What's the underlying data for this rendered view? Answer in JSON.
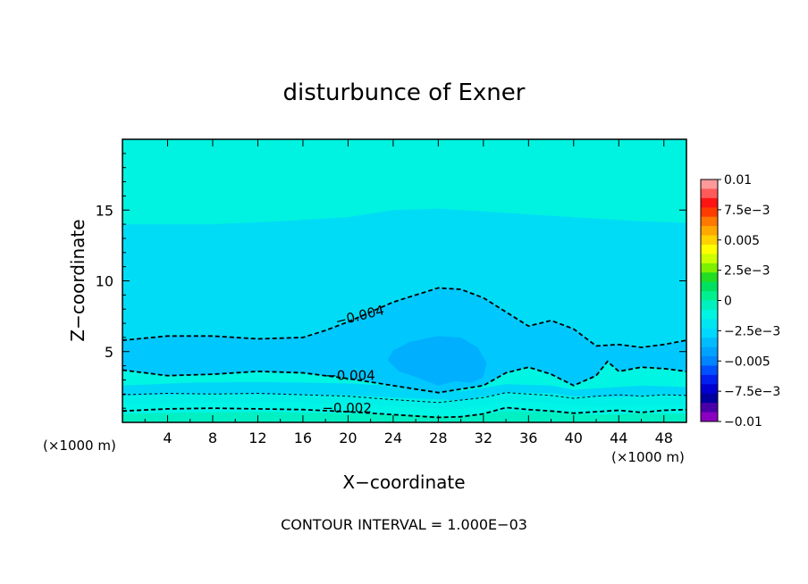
{
  "chart_data": {
    "type": "contour",
    "title": "disturbunce of Exner",
    "xlabel": "X−coordinate",
    "ylabel": "Z−coordinate",
    "x_unit": "(×1000 m)",
    "xlim": [
      0,
      50
    ],
    "ylim": [
      0,
      20
    ],
    "x_ticks": [
      4,
      8,
      12,
      16,
      20,
      24,
      28,
      32,
      36,
      40,
      44,
      48
    ],
    "y_ticks": [
      5,
      10,
      15
    ],
    "footer": "CONTOUR INTERVAL = 1.000E−03",
    "colorbar": {
      "labels": [
        "0.01",
        "7.5e−3",
        "0.005",
        "2.5e−3",
        "0",
        "−2.5e−3",
        "−0.005",
        "−7.5e−3",
        "−0.01"
      ],
      "colors": [
        "#ff9a9a",
        "#ff5a5a",
        "#ff1414",
        "#ff3c00",
        "#ff7800",
        "#ffa800",
        "#ffd200",
        "#ffff00",
        "#ccff00",
        "#7cf000",
        "#22dd22",
        "#00e060",
        "#00f090",
        "#00f0c0",
        "#00f5e0",
        "#00e6f0",
        "#00d8ff",
        "#00bcff",
        "#00a2ff",
        "#0084ff",
        "#0050ff",
        "#0020f0",
        "#0000d0",
        "#0000a0",
        "#4a00a8",
        "#8a00c0"
      ]
    },
    "contour_labels": [
      {
        "text": "−0.004",
        "x": 19.0,
        "z": 6.8
      },
      {
        "text": "−0.004",
        "x": 18.0,
        "z": 3.0
      },
      {
        "text": "−0.002",
        "x": 17.7,
        "z": 0.7
      }
    ],
    "fills": [
      {
        "level": "−a",
        "color": "#00f0c4",
        "line": [
          [
            0,
            0.6
          ],
          [
            6,
            0.7
          ],
          [
            12,
            0.75
          ],
          [
            20,
            0.65
          ],
          [
            26,
            0.5
          ],
          [
            30,
            0.4
          ],
          [
            34,
            0.8
          ],
          [
            38,
            0.75
          ],
          [
            42,
            0.55
          ],
          [
            46,
            0.65
          ],
          [
            50,
            0.6
          ]
        ]
      },
      {
        "level": "−2.5e−3",
        "color": "#00f5e6",
        "line": [
          [
            0,
            1.3
          ],
          [
            6,
            1.35
          ],
          [
            12,
            1.4
          ],
          [
            20,
            1.3
          ],
          [
            26,
            1.05
          ],
          [
            30,
            0.95
          ],
          [
            34,
            1.4
          ],
          [
            38,
            1.35
          ],
          [
            42,
            1.1
          ],
          [
            46,
            1.25
          ],
          [
            50,
            1.2
          ]
        ]
      },
      {
        "level": "−b",
        "color": "#00f0e8",
        "line": [
          [
            0,
            1.9
          ],
          [
            6,
            2.0
          ],
          [
            12,
            2.0
          ],
          [
            20,
            1.9
          ],
          [
            26,
            1.7
          ],
          [
            30,
            1.55
          ],
          [
            34,
            2.1
          ],
          [
            38,
            2.05
          ],
          [
            40,
            1.85
          ],
          [
            44,
            1.8
          ],
          [
            48,
            1.95
          ],
          [
            50,
            1.9
          ]
        ]
      },
      {
        "level": "−c",
        "color": "#00d6f8",
        "line": [
          [
            0,
            2.6
          ],
          [
            6,
            2.8
          ],
          [
            12,
            2.85
          ],
          [
            20,
            2.75
          ],
          [
            26,
            2.5
          ],
          [
            30,
            2.2
          ],
          [
            34,
            2.7
          ],
          [
            38,
            2.6
          ],
          [
            40,
            2.3
          ],
          [
            42,
            2.4
          ],
          [
            46,
            2.6
          ],
          [
            50,
            2.5
          ]
        ]
      },
      {
        "level": "−0.004",
        "color": "#00c8ff",
        "line": [
          [
            0,
            3.7
          ],
          [
            2,
            3.5
          ],
          [
            4,
            3.3
          ],
          [
            8,
            3.4
          ],
          [
            12,
            3.6
          ],
          [
            16,
            3.5
          ],
          [
            20,
            3.1
          ],
          [
            24,
            2.6
          ],
          [
            28,
            2.1
          ],
          [
            32,
            2.6
          ],
          [
            34,
            3.5
          ],
          [
            36,
            3.9
          ],
          [
            38,
            3.4
          ],
          [
            40,
            2.6
          ],
          [
            42,
            3.3
          ],
          [
            43,
            4.3
          ],
          [
            44,
            3.6
          ],
          [
            46,
            3.9
          ],
          [
            48,
            3.8
          ],
          [
            50,
            3.6
          ]
        ],
        "upper": [
          [
            0,
            5.8
          ],
          [
            4,
            6.1
          ],
          [
            8,
            6.1
          ],
          [
            12,
            5.9
          ],
          [
            16,
            6.0
          ],
          [
            18,
            6.5
          ],
          [
            20,
            7.1
          ],
          [
            22,
            7.8
          ],
          [
            24,
            8.5
          ],
          [
            28,
            9.5
          ],
          [
            30,
            9.4
          ],
          [
            32,
            8.8
          ],
          [
            34,
            7.8
          ],
          [
            36,
            6.8
          ],
          [
            38,
            7.2
          ],
          [
            40,
            6.6
          ],
          [
            42,
            5.4
          ],
          [
            44,
            5.5
          ],
          [
            46,
            5.3
          ],
          [
            48,
            5.5
          ],
          [
            50,
            5.8
          ]
        ]
      },
      {
        "level": "−0.005",
        "color": "#00b0ff",
        "blob": [
          [
            23.5,
            4.4
          ],
          [
            24,
            5.1
          ],
          [
            25.5,
            5.7
          ],
          [
            28,
            6.1
          ],
          [
            30,
            6.0
          ],
          [
            31.5,
            5.3
          ],
          [
            32.3,
            4.2
          ],
          [
            32,
            3.2
          ],
          [
            31,
            2.8
          ],
          [
            29.5,
            2.9
          ],
          [
            28,
            2.6
          ],
          [
            26,
            3.2
          ],
          [
            24.5,
            3.6
          ]
        ]
      },
      {
        "level": "−d",
        "color": "#00dcf6",
        "line": [
          [
            0,
            14.0
          ],
          [
            8,
            14.0
          ],
          [
            14,
            14.2
          ],
          [
            20,
            14.5
          ],
          [
            24,
            15.0
          ],
          [
            28,
            15.1
          ],
          [
            34,
            14.8
          ],
          [
            40,
            14.5
          ],
          [
            46,
            14.2
          ],
          [
            50,
            14.1
          ]
        ]
      }
    ],
    "dashed_contours": [
      {
        "value": "−0.002",
        "weight": "bold",
        "line": [
          [
            0,
            0.8
          ],
          [
            4,
            0.95
          ],
          [
            8,
            1.0
          ],
          [
            12,
            0.95
          ],
          [
            16,
            0.9
          ],
          [
            20,
            0.75
          ],
          [
            24,
            0.55
          ],
          [
            28,
            0.35
          ],
          [
            30,
            0.4
          ],
          [
            32,
            0.6
          ],
          [
            34,
            1.05
          ],
          [
            36,
            0.9
          ],
          [
            38,
            0.8
          ],
          [
            40,
            0.65
          ],
          [
            42,
            0.75
          ],
          [
            44,
            0.85
          ],
          [
            46,
            0.7
          ],
          [
            48,
            0.85
          ],
          [
            50,
            0.9
          ]
        ]
      },
      {
        "value": "−0.002b",
        "weight": "thin",
        "line": [
          [
            0,
            1.95
          ],
          [
            4,
            2.05
          ],
          [
            8,
            2.0
          ],
          [
            12,
            2.05
          ],
          [
            16,
            1.95
          ],
          [
            20,
            1.85
          ],
          [
            24,
            1.6
          ],
          [
            28,
            1.4
          ],
          [
            32,
            1.75
          ],
          [
            34,
            2.1
          ],
          [
            36,
            2.0
          ],
          [
            38,
            1.9
          ],
          [
            40,
            1.7
          ],
          [
            42,
            1.85
          ],
          [
            44,
            1.95
          ],
          [
            46,
            1.85
          ],
          [
            48,
            1.95
          ],
          [
            50,
            1.9
          ]
        ]
      },
      {
        "value": "−0.004",
        "weight": "bold",
        "line": [
          [
            0,
            3.7
          ],
          [
            2,
            3.5
          ],
          [
            4,
            3.3
          ],
          [
            8,
            3.4
          ],
          [
            12,
            3.6
          ],
          [
            16,
            3.5
          ],
          [
            20,
            3.1
          ],
          [
            24,
            2.6
          ],
          [
            28,
            2.1
          ],
          [
            32,
            2.6
          ],
          [
            34,
            3.5
          ],
          [
            36,
            3.9
          ],
          [
            38,
            3.4
          ],
          [
            40,
            2.6
          ],
          [
            42,
            3.3
          ],
          [
            43,
            4.3
          ],
          [
            44,
            3.6
          ],
          [
            46,
            3.9
          ],
          [
            48,
            3.8
          ],
          [
            50,
            3.6
          ]
        ]
      },
      {
        "value": "−0.004u",
        "weight": "bold",
        "line": [
          [
            0,
            5.8
          ],
          [
            4,
            6.1
          ],
          [
            8,
            6.1
          ],
          [
            12,
            5.9
          ],
          [
            16,
            6.0
          ],
          [
            18,
            6.5
          ],
          [
            20,
            7.1
          ],
          [
            22,
            7.8
          ],
          [
            24,
            8.5
          ],
          [
            28,
            9.5
          ],
          [
            30,
            9.4
          ],
          [
            32,
            8.8
          ],
          [
            34,
            7.8
          ],
          [
            36,
            6.8
          ],
          [
            38,
            7.2
          ],
          [
            40,
            6.6
          ],
          [
            42,
            5.4
          ],
          [
            44,
            5.5
          ],
          [
            46,
            5.3
          ],
          [
            48,
            5.5
          ],
          [
            50,
            5.8
          ]
        ]
      }
    ]
  }
}
